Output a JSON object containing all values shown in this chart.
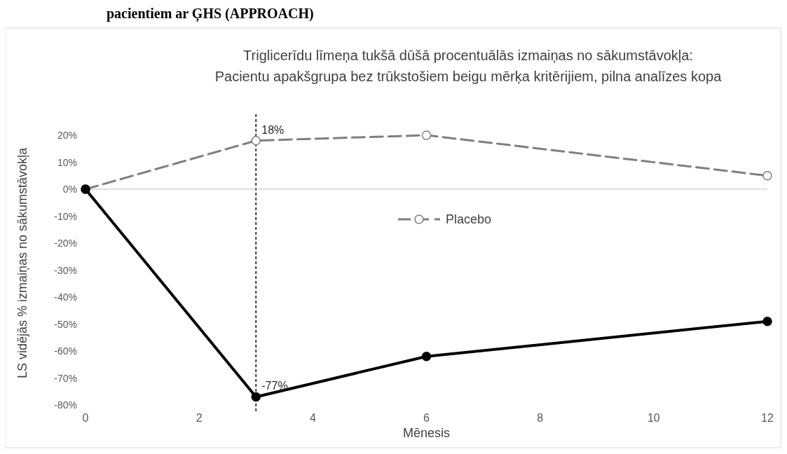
{
  "chart_data": {
    "type": "line",
    "title": "Triglicerīdu līmeņa tukšā dūšā procentuālās izmaiņas no sākumstāvokļa:",
    "subtitle": "Pacientu apakšgrupa bez trūkstošiem beigu mērķa kritērijiem, pilna analīzes kopa",
    "xlabel": "Mēnesis",
    "ylabel": "LS vidējās % izmaiņas no sākumstāvokļa",
    "annotations": [
      "pacientiem ar ĢHS (APPROACH)"
    ],
    "x": [
      0,
      3,
      6,
      12
    ],
    "series": [
      {
        "name": "Placebo",
        "color": "#7f7f7f",
        "line_style": "dashed",
        "values": [
          0,
          18,
          20,
          5
        ],
        "value_labels": [
          null,
          "18%",
          null,
          null
        ]
      },
      {
        "color": "#000000",
        "line_style": "solid",
        "values": [
          0,
          -77,
          -62,
          -49
        ],
        "value_labels": [
          null,
          "-77%",
          null,
          null
        ]
      }
    ],
    "xlim": [
      0,
      12
    ],
    "xticks": [
      0,
      2,
      4,
      6,
      8,
      10,
      12
    ],
    "ylim": [
      -80,
      20
    ],
    "yticks": [
      {
        "value": 20,
        "label": "20%"
      },
      {
        "value": 10,
        "label": "10%"
      },
      {
        "value": 0,
        "label": "0%"
      },
      {
        "value": -10,
        "label": "-10%"
      },
      {
        "value": -20,
        "label": "-20%"
      },
      {
        "value": -30,
        "label": "-30%"
      },
      {
        "value": -40,
        "label": "-40%"
      },
      {
        "value": -50,
        "label": "-50%"
      },
      {
        "value": -60,
        "label": "-60%"
      },
      {
        "value": -70,
        "label": "-70%"
      },
      {
        "value": -80,
        "label": "-80%"
      }
    ],
    "ref_lines": [
      {
        "axis": "x",
        "value": 3,
        "color": "#000000",
        "line_style": "dotted"
      },
      {
        "axis": "y",
        "value": 0,
        "color": "#bfbfbf",
        "line_style": "solid"
      }
    ],
    "marker": "circle",
    "legend": "center",
    "grid": false
  }
}
